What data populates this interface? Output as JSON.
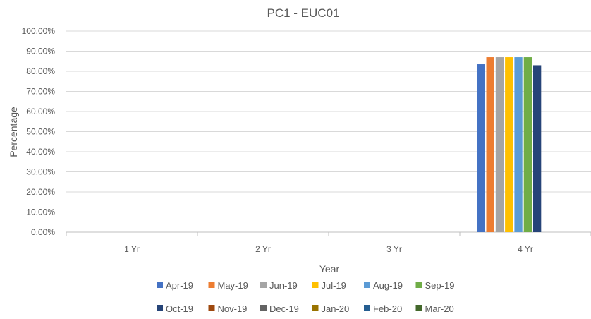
{
  "chart_data": {
    "type": "bar",
    "title": "PC1 - EUC01",
    "xlabel": "Year",
    "ylabel": "Percentage",
    "categories": [
      "1 Yr",
      "2 Yr",
      "3 Yr",
      "4 Yr"
    ],
    "ylim": [
      0,
      100
    ],
    "yticks": [
      "0.00%",
      "10.00%",
      "20.00%",
      "30.00%",
      "40.00%",
      "50.00%",
      "60.00%",
      "70.00%",
      "80.00%",
      "90.00%",
      "100.00%"
    ],
    "grid": true,
    "legend_position": "bottom",
    "series": [
      {
        "name": "Apr-19",
        "color": "#4472C4",
        "values": [
          null,
          null,
          null,
          83.5
        ]
      },
      {
        "name": "May-19",
        "color": "#ED7D31",
        "values": [
          null,
          null,
          null,
          87
        ]
      },
      {
        "name": "Jun-19",
        "color": "#A5A5A5",
        "values": [
          null,
          null,
          null,
          87
        ]
      },
      {
        "name": "Jul-19",
        "color": "#FFC000",
        "values": [
          null,
          null,
          null,
          87
        ]
      },
      {
        "name": "Aug-19",
        "color": "#5B9BD5",
        "values": [
          null,
          null,
          null,
          87
        ]
      },
      {
        "name": "Sep-19",
        "color": "#70AD47",
        "values": [
          null,
          null,
          null,
          87
        ]
      },
      {
        "name": "Oct-19",
        "color": "#264478",
        "values": [
          null,
          null,
          null,
          83
        ]
      },
      {
        "name": "Nov-19",
        "color": "#9E480E",
        "values": [
          null,
          null,
          null,
          null
        ]
      },
      {
        "name": "Dec-19",
        "color": "#636363",
        "values": [
          null,
          null,
          null,
          null
        ]
      },
      {
        "name": "Jan-20",
        "color": "#997300",
        "values": [
          null,
          null,
          null,
          null
        ]
      },
      {
        "name": "Feb-20",
        "color": "#255E91",
        "values": [
          null,
          null,
          null,
          null
        ]
      },
      {
        "name": "Mar-20",
        "color": "#43682B",
        "values": [
          null,
          null,
          null,
          null
        ]
      }
    ]
  }
}
